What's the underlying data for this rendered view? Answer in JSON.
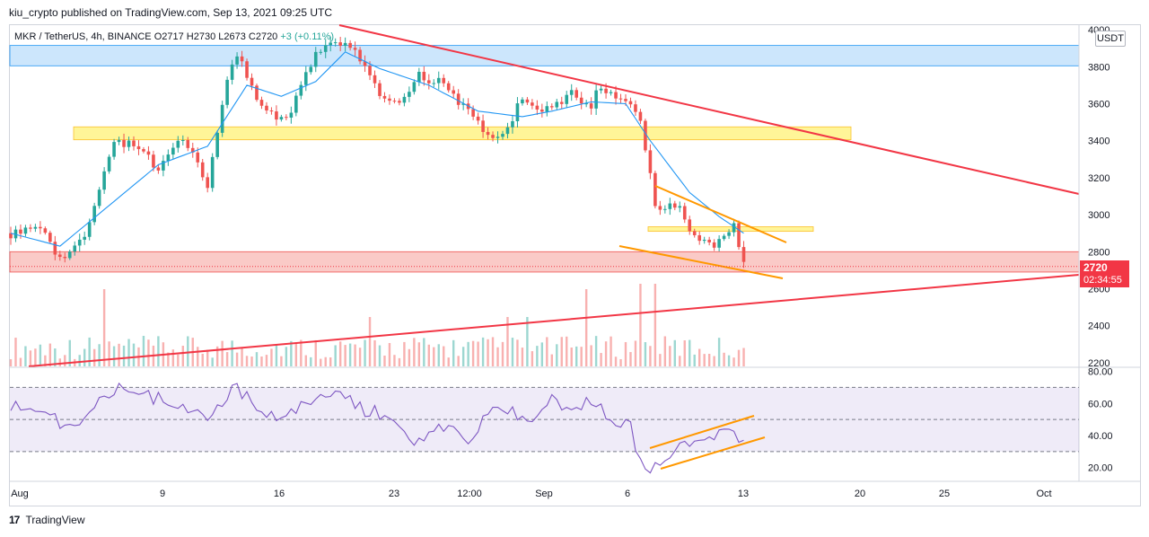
{
  "header": {
    "published": "kiu_crypto published on TradingView.com, Sep 13, 2021 09:25 UTC"
  },
  "legend": {
    "symbol": "MKR / TetherUS, 4h, BINANCE",
    "ohlc": "O2717  H2730  L2673  C2720",
    "change": "+3 (+0.11%)"
  },
  "currency": "USDT",
  "last_price": {
    "value": "2720",
    "countdown": "02:34:55"
  },
  "footer": {
    "brand": "TradingView"
  },
  "colors": {
    "up": "#26a69a",
    "down": "#ef5350",
    "ma": "#2196f3",
    "trend": "#f23645",
    "channel": "#ff9800",
    "rsi": "#7e57c2",
    "res_zone": "#bbdefb",
    "mid_zone": "#fff176",
    "sup_zone": "#f8b8b4"
  },
  "chart_data": [
    {
      "type": "candlestick",
      "panel": "price",
      "title": "MKR / TetherUS, 4h, BINANCE",
      "x_ticks": [
        "Aug",
        "9",
        "16",
        "23",
        "12:00",
        "Sep",
        "6",
        "13",
        "20",
        "25",
        "Oct"
      ],
      "y_ticks": [
        "4000",
        "3800",
        "3600",
        "3400",
        "3200",
        "3000",
        "2800",
        "2600",
        "2400",
        "2200"
      ],
      "ylim": [
        2180,
        4020
      ],
      "close_path": [
        [
          0,
          2900
        ],
        [
          6,
          2950
        ],
        [
          10,
          2760
        ],
        [
          15,
          2860
        ],
        [
          21,
          3400
        ],
        [
          26,
          3380
        ],
        [
          30,
          3230
        ],
        [
          35,
          3420
        ],
        [
          40,
          3160
        ],
        [
          44,
          3720
        ],
        [
          46,
          3870
        ],
        [
          50,
          3620
        ],
        [
          53,
          3550
        ],
        [
          56,
          3520
        ],
        [
          62,
          3860
        ],
        [
          68,
          3950
        ],
        [
          72,
          3780
        ],
        [
          75,
          3650
        ],
        [
          79,
          3610
        ],
        [
          83,
          3760
        ],
        [
          88,
          3700
        ],
        [
          94,
          3520
        ],
        [
          99,
          3400
        ],
        [
          104,
          3620
        ],
        [
          109,
          3570
        ],
        [
          114,
          3650
        ],
        [
          118,
          3600
        ],
        [
          120,
          3690
        ],
        [
          125,
          3630
        ],
        [
          128,
          3500
        ],
        [
          131,
          3050
        ],
        [
          136,
          3030
        ],
        [
          138,
          2900
        ],
        [
          143,
          2830
        ],
        [
          147,
          2940
        ],
        [
          149,
          2720
        ]
      ],
      "volume_up": [
        9,
        14,
        15,
        16,
        23,
        25,
        30,
        41,
        50,
        56,
        61,
        75,
        92,
        102,
        107,
        115,
        119,
        139,
        146
      ],
      "ma_path": [
        [
          0,
          2900
        ],
        [
          10,
          2830
        ],
        [
          20,
          3050
        ],
        [
          30,
          3270
        ],
        [
          40,
          3370
        ],
        [
          48,
          3700
        ],
        [
          55,
          3640
        ],
        [
          62,
          3720
        ],
        [
          68,
          3880
        ],
        [
          75,
          3790
        ],
        [
          85,
          3700
        ],
        [
          95,
          3560
        ],
        [
          104,
          3530
        ],
        [
          110,
          3560
        ],
        [
          118,
          3610
        ],
        [
          125,
          3600
        ],
        [
          130,
          3400
        ],
        [
          138,
          3120
        ],
        [
          144,
          2990
        ],
        [
          149,
          2900
        ]
      ],
      "zones": [
        {
          "name": "resistance",
          "range": [
            3805,
            3915
          ]
        },
        {
          "name": "mid",
          "range": [
            3405,
            3475
          ]
        },
        {
          "name": "support",
          "range": [
            2690,
            2800
          ]
        },
        {
          "name": "small",
          "range": [
            2910,
            2935
          ]
        }
      ],
      "last_price": 2720
    },
    {
      "type": "line",
      "panel": "rsi",
      "y_ticks": [
        "80.00",
        "60.00",
        "40.00",
        "20.00"
      ],
      "ylim": [
        12,
        82
      ],
      "levels": [
        30,
        50,
        70
      ],
      "series": [
        {
          "values_path": [
            [
              0,
              60
            ],
            [
              8,
              52
            ],
            [
              12,
              45
            ],
            [
              18,
              62
            ],
            [
              22,
              72
            ],
            [
              28,
              65
            ],
            [
              35,
              58
            ],
            [
              40,
              48
            ],
            [
              45,
              70
            ],
            [
              50,
              60
            ],
            [
              55,
              48
            ],
            [
              60,
              60
            ],
            [
              65,
              68
            ],
            [
              72,
              55
            ],
            [
              78,
              53
            ],
            [
              82,
              38
            ],
            [
              88,
              45
            ],
            [
              93,
              36
            ],
            [
              98,
              60
            ],
            [
              103,
              54
            ],
            [
              106,
              48
            ],
            [
              110,
              63
            ],
            [
              114,
              55
            ],
            [
              118,
              62
            ],
            [
              121,
              52
            ],
            [
              126,
              45
            ],
            [
              128,
              22
            ],
            [
              130,
              17
            ],
            [
              136,
              35
            ],
            [
              142,
              38
            ],
            [
              145,
              48
            ],
            [
              149,
              35
            ]
          ]
        }
      ]
    }
  ]
}
